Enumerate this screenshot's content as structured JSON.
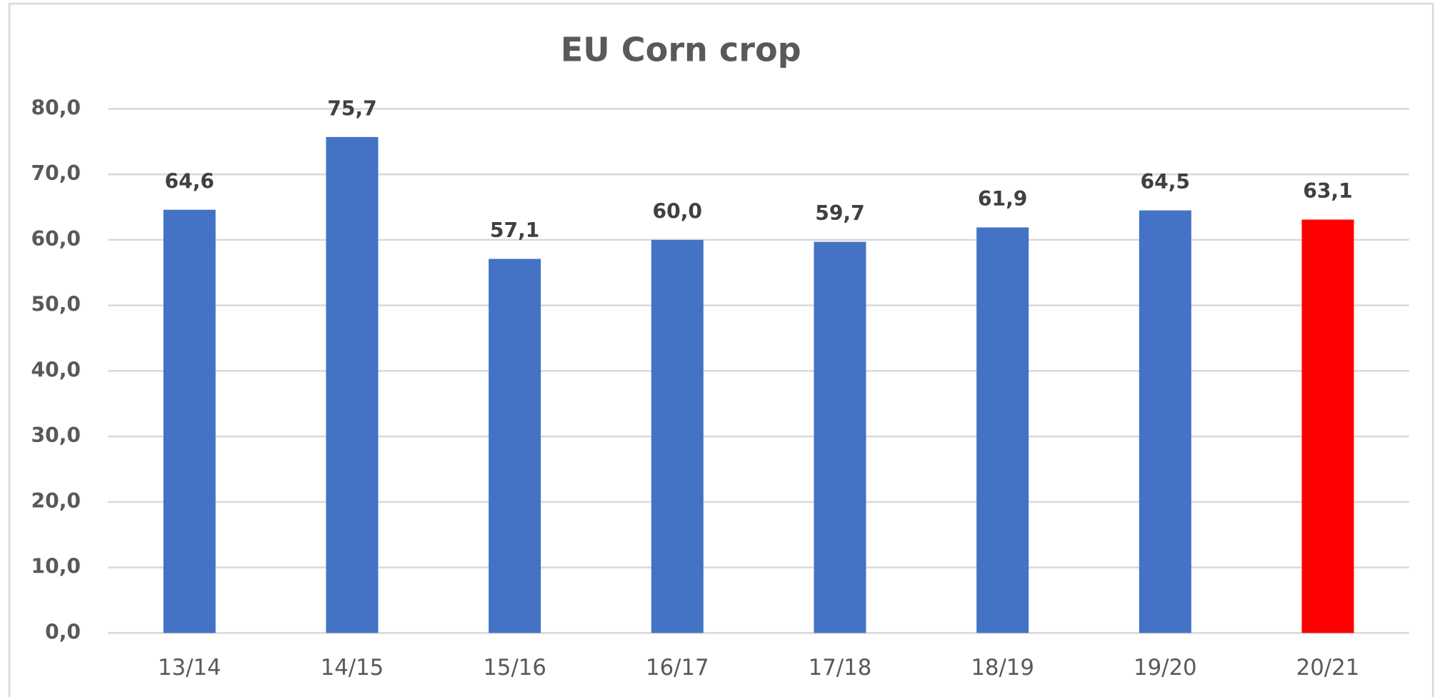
{
  "chart_data": {
    "type": "bar",
    "title": "EU Corn crop",
    "categories": [
      "13/14",
      "14/15",
      "15/16",
      "16/17",
      "17/18",
      "18/19",
      "19/20",
      "20/21"
    ],
    "values": [
      64.6,
      75.7,
      57.1,
      60.0,
      59.7,
      61.9,
      64.5,
      63.1
    ],
    "value_labels": [
      "64,6",
      "75,7",
      "57,1",
      "60,0",
      "59,7",
      "61,9",
      "64,5",
      "63,1"
    ],
    "colors": [
      "#4472c4",
      "#4472c4",
      "#4472c4",
      "#4472c4",
      "#4472c4",
      "#4472c4",
      "#4472c4",
      "#ff0000"
    ],
    "ylim": [
      0,
      80
    ],
    "yticks": [
      {
        "value": 0,
        "label": "0,0"
      },
      {
        "value": 10,
        "label": "10,0"
      },
      {
        "value": 20,
        "label": "20,0"
      },
      {
        "value": 30,
        "label": "30,0"
      },
      {
        "value": 40,
        "label": "40,0"
      },
      {
        "value": 50,
        "label": "50,0"
      },
      {
        "value": 60,
        "label": "60,0"
      },
      {
        "value": 70,
        "label": "70,0"
      },
      {
        "value": 80,
        "label": "80,0"
      }
    ],
    "grid": true
  }
}
